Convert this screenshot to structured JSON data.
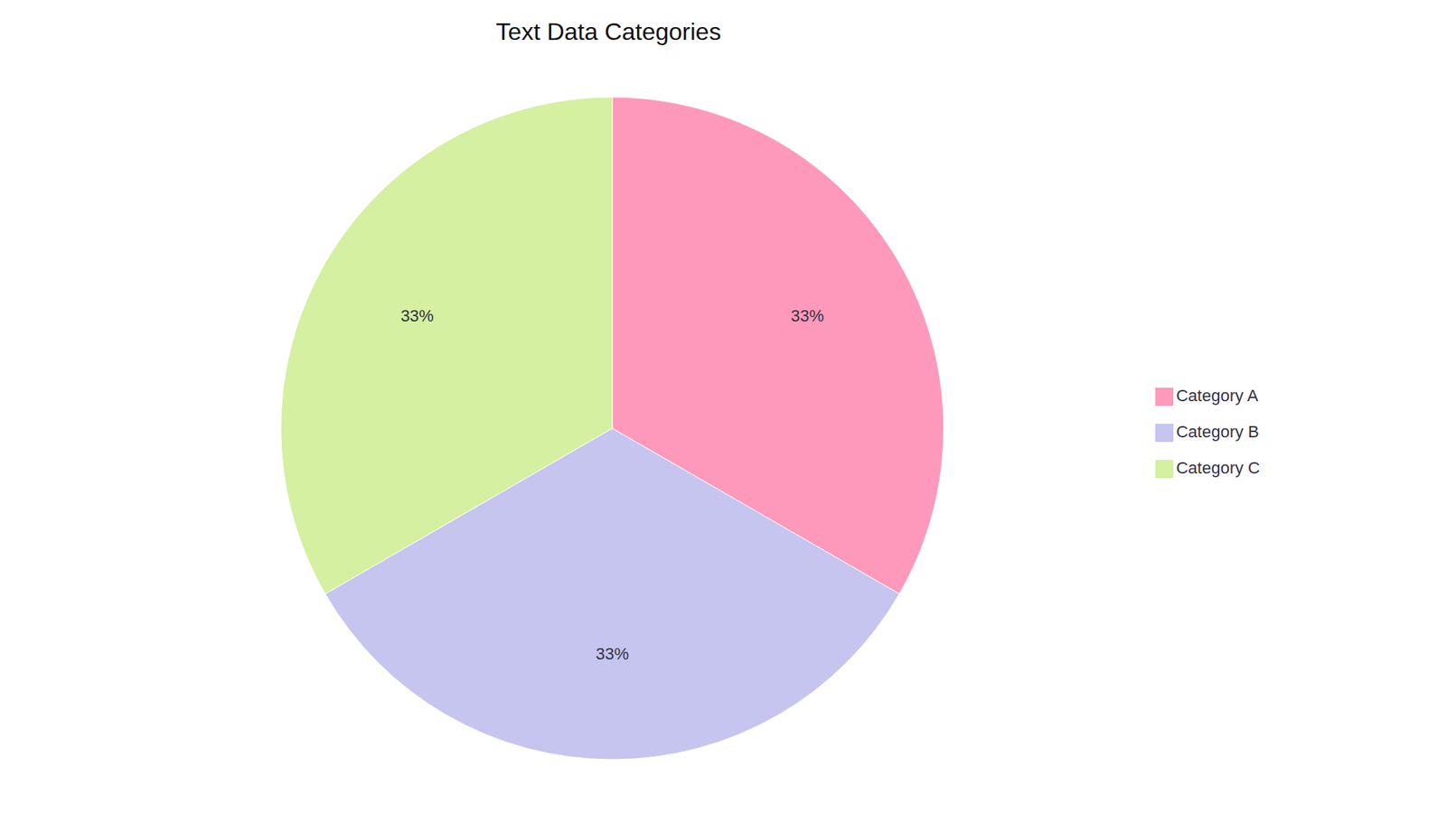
{
  "chart_data": {
    "type": "pie",
    "title": "Text Data Categories",
    "categories": [
      "Category A",
      "Category B",
      "Category C"
    ],
    "values": [
      33.33,
      33.34,
      33.33
    ],
    "value_labels": [
      "33%",
      "33%",
      "33%"
    ],
    "colors": [
      "#FF99BB",
      "#C5C5F0",
      "#D4F0A0"
    ],
    "data_labels": true
  }
}
